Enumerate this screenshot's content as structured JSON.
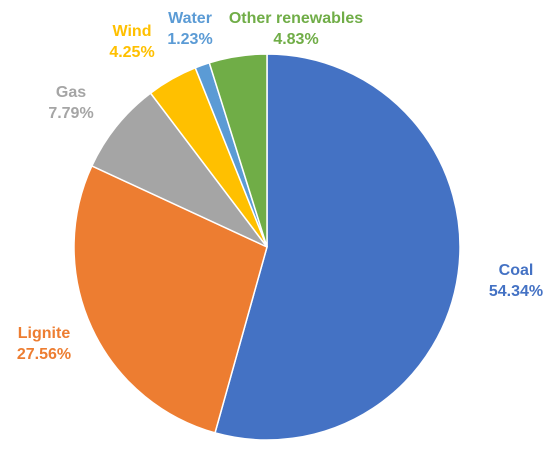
{
  "chart_data": {
    "type": "pie",
    "start_angle_deg": 0,
    "direction": "clockwise",
    "slices": [
      {
        "label": "Coal",
        "value": 54.34,
        "value_label": "54.34%",
        "color": "#4472C4"
      },
      {
        "label": "Lignite",
        "value": 27.56,
        "value_label": "27.56%",
        "color": "#ED7D31"
      },
      {
        "label": "Gas",
        "value": 7.79,
        "value_label": "7.79%",
        "color": "#A5A5A5"
      },
      {
        "label": "Wind",
        "value": 4.25,
        "value_label": "4.25%",
        "color": "#FFC000"
      },
      {
        "label": "Water",
        "value": 1.23,
        "value_label": "1.23%",
        "color": "#5B9BD5"
      },
      {
        "label": "Other renewables",
        "value": 4.83,
        "value_label": "4.83%",
        "color": "#70AD47"
      }
    ]
  }
}
